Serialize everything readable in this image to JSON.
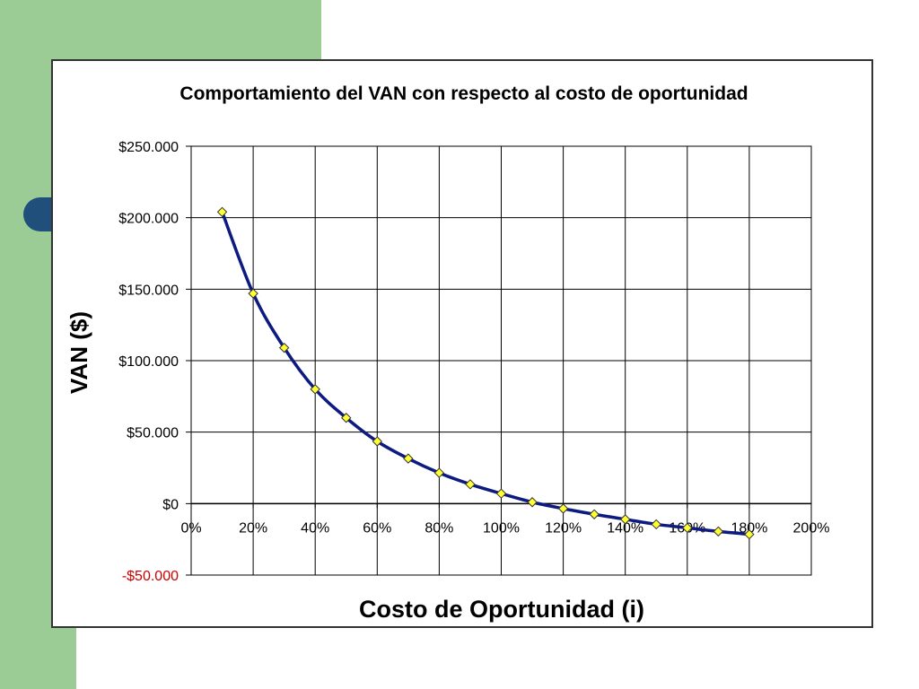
{
  "colors": {
    "background_green": "#9ccc95",
    "tab_blue": "#1f4f7a",
    "line": "#0d1a80",
    "marker_fill": "#ffff33",
    "negative_tick": "#cc0000"
  },
  "chart_data": {
    "type": "line",
    "title": "Comportamiento del VAN con respecto al costo de oportunidad",
    "xlabel": "Costo de Oportunidad (i)",
    "ylabel": "VAN ($)",
    "xlim": [
      0,
      2.0
    ],
    "ylim": [
      -50000,
      250000
    ],
    "x_ticks": [
      0,
      0.2,
      0.4,
      0.6,
      0.8,
      1.0,
      1.2,
      1.4,
      1.6,
      1.8,
      2.0
    ],
    "x_tick_labels": [
      "0%",
      "20%",
      "40%",
      "60%",
      "80%",
      "100%",
      "120%",
      "140%",
      "160%",
      "180%",
      "200%"
    ],
    "y_ticks": [
      250000,
      200000,
      150000,
      100000,
      50000,
      0,
      -50000
    ],
    "y_tick_labels": [
      "$250.000",
      "$200.000",
      "$150.000",
      "$100.000",
      "$50.000",
      "$0",
      "-$50.000"
    ],
    "grid": true,
    "marker": "diamond",
    "series": [
      {
        "x": [
          0.1,
          0.2,
          0.3,
          0.4,
          0.5,
          0.6,
          0.7,
          0.8,
          0.9,
          1.0,
          1.1,
          1.2,
          1.3,
          1.4,
          1.5,
          1.6,
          1.7,
          1.8
        ],
        "values": [
          204000,
          147000,
          109000,
          80000,
          60000,
          43500,
          31500,
          21500,
          13500,
          7000,
          1000,
          -3500,
          -7500,
          -11000,
          -14500,
          -17000,
          -19500,
          -21500
        ]
      }
    ]
  }
}
